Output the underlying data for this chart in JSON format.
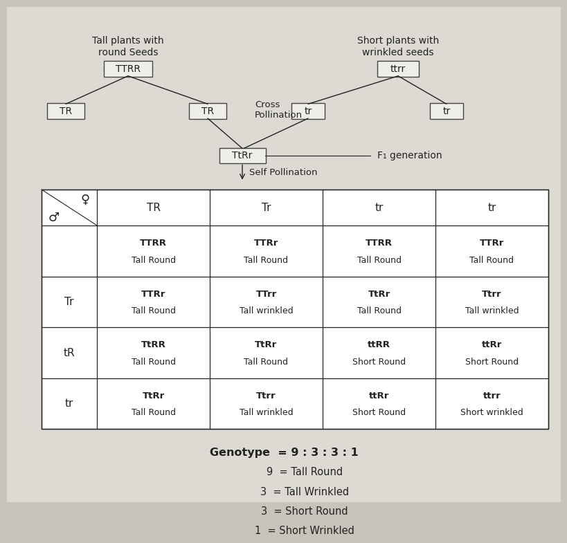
{
  "bg_color": "#c8c4bc",
  "page_color": "#dddad4",
  "text_color": "#222222",
  "box_color": "#f0eeea",
  "box_edge": "#444444",
  "title_left": "Tall plants with\nround Seeds",
  "title_right": "Short plants with\nwrinkled seeds",
  "parent_left": "TTRR",
  "parent_right": "ttrr",
  "gametes_left": [
    "TR",
    "TR"
  ],
  "gametes_right": [
    "tr",
    "tr"
  ],
  "f1": "TtRr",
  "f1_label": "F₁ generation",
  "cross_label": "Cross\nPollination",
  "self_label": "Self Pollination",
  "col_headers": [
    "TR",
    "Tr",
    "tr",
    "tr"
  ],
  "row_headers": [
    "",
    "Tr",
    "tR",
    "tr"
  ],
  "table_data": [
    [
      "TTRR\nTall Round",
      "TTRr\nTall Round",
      "TTRR\nTall Round",
      "TTRr\nTall Round"
    ],
    [
      "TTRr\nTall Round",
      "TTrr\nTall wrinkled",
      "TtRr\nTall Round",
      "Ttrr\nTall wrinkled"
    ],
    [
      "TtRR\nTall Round",
      "TtRr\nTall Round",
      "ttRR\nShort Round",
      "ttRr\nShort Round"
    ],
    [
      "TtRr\nTall Round",
      "Ttrr\nTall wrinkled",
      "ttRr\nShort Round",
      "ttrr\nShort wrinkled"
    ]
  ],
  "genotype_lines": [
    "Genotype  = 9 : 3 : 3 : 1",
    "9  = Tall Round",
    "3  = Tall Wrinkled",
    "3  = Short Round",
    "1  = Short Wrinkled"
  ]
}
